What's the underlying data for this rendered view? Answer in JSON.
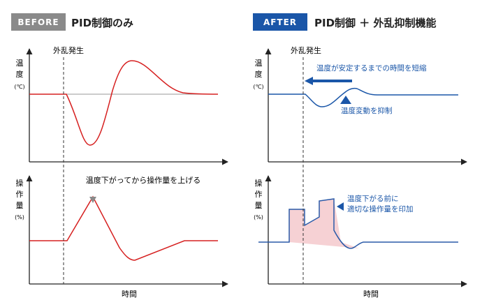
{
  "before": {
    "badge": "BEFORE",
    "title": "PID制御のみ",
    "disturbance_label": "外乱発生",
    "top_ylabel": [
      "温",
      "度"
    ],
    "top_yunit": "(℃)",
    "bottom_ylabel": [
      "操",
      "作",
      "量"
    ],
    "bottom_yunit": "(%)",
    "note": "温度下がってから操作量を上げる",
    "xlabel": "時間"
  },
  "after": {
    "badge": "AFTER",
    "title": "PID制御 ＋ 外乱抑制機能",
    "disturbance_label": "外乱発生",
    "top_ylabel": [
      "温",
      "度"
    ],
    "top_yunit": "(℃)",
    "bottom_ylabel": [
      "操",
      "作",
      "量"
    ],
    "bottom_yunit": "(%)",
    "note_stable": "温度が安定するまでの時間を短縮",
    "note_suppress": "温度変動を抑制",
    "note_preempt": [
      "温度下がる前に",
      "適切な操作量を印加"
    ],
    "xlabel": "時間"
  },
  "colors": {
    "before_badge": "#8a8a8a",
    "after_badge": "#1a56a8",
    "before_curve": "#d62020",
    "after_curve": "#1a56a8",
    "after_text": "#1a56a8",
    "shade": "#f4c9cc",
    "pulse": "#2a5aa8"
  }
}
